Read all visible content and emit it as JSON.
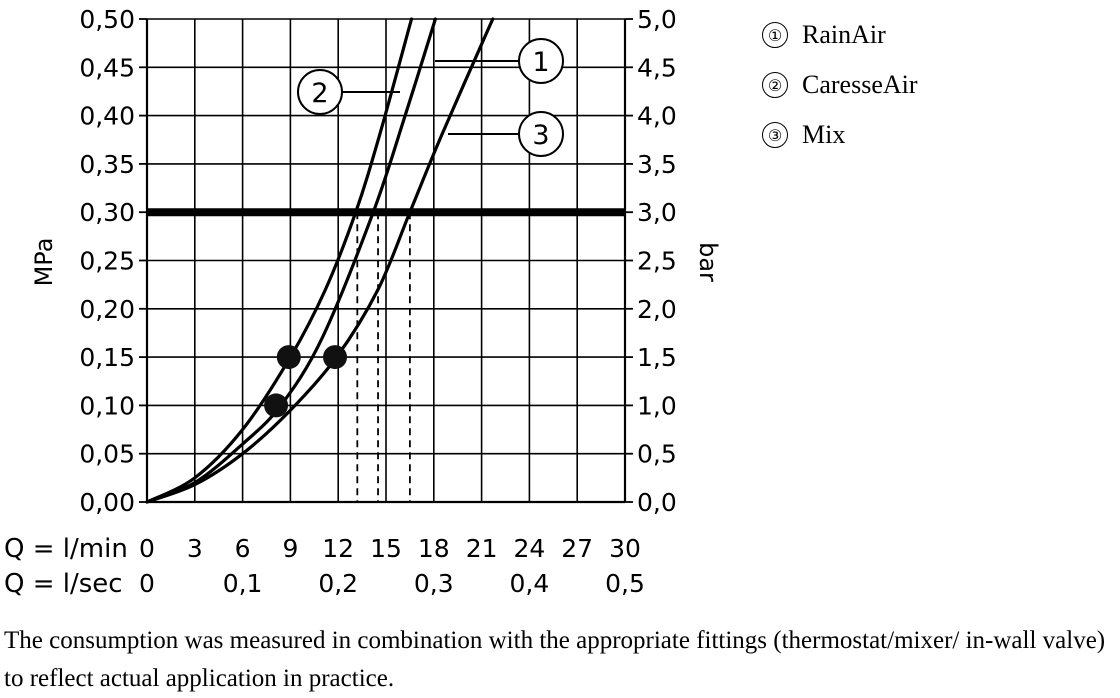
{
  "chart_data": {
    "type": "line",
    "ylabel_left": "MPa",
    "ylabel_right": "bar",
    "x_row_labels": [
      "Q = l/min",
      "Q = l/sec"
    ],
    "x_ticks_lmin": [
      "0",
      "3",
      "6",
      "9",
      "12",
      "15",
      "18",
      "21",
      "24",
      "27",
      "30"
    ],
    "x_ticks_lsec": [
      "0",
      "0,1",
      "0,2",
      "0,3",
      "0,4",
      "0,5"
    ],
    "y_ticks_left": [
      "0,00",
      "0,05",
      "0,10",
      "0,15",
      "0,20",
      "0,25",
      "0,30",
      "0,35",
      "0,40",
      "0,45",
      "0,50"
    ],
    "y_ticks_right": [
      "0,0",
      "0,5",
      "1,0",
      "1,5",
      "2,0",
      "2,5",
      "3,0",
      "3,5",
      "4,0",
      "4,5",
      "5,0"
    ],
    "xlim": [
      0,
      30
    ],
    "ylim": [
      0,
      0.5
    ],
    "grid": true,
    "reference_line": {
      "y": 0.3
    },
    "series": [
      {
        "name": "RainAir",
        "marker": "1",
        "x": [
          0,
          3,
          6,
          8.4,
          11,
          14.2,
          16.2,
          18.1
        ],
        "y": [
          0,
          0.02,
          0.06,
          0.1,
          0.17,
          0.3,
          0.4,
          0.5
        ],
        "label_at": [
          19.2,
          0.46
        ]
      },
      {
        "name": "CaresseAir",
        "marker": "2",
        "x": [
          0,
          3,
          6,
          9,
          11.2,
          13.1,
          14.6,
          16.6
        ],
        "y": [
          0,
          0.025,
          0.075,
          0.15,
          0.22,
          0.3,
          0.38,
          0.5
        ],
        "label_at": [
          15.7,
          0.425
        ]
      },
      {
        "name": "Mix",
        "marker": "3",
        "x": [
          0,
          3,
          6,
          9,
          11.9,
          14.5,
          16.5,
          18.5,
          21.7
        ],
        "y": [
          0,
          0.018,
          0.05,
          0.095,
          0.15,
          0.22,
          0.3,
          0.38,
          0.5
        ],
        "label_at": [
          18.8,
          0.38
        ]
      }
    ],
    "highlight_points": [
      {
        "x": 8.9,
        "y": 0.15
      },
      {
        "x": 11.8,
        "y": 0.15
      },
      {
        "x": 8.1,
        "y": 0.1
      }
    ],
    "dashed_drops": [
      13.2,
      14.5,
      16.5
    ]
  },
  "legend": [
    {
      "marker": "①",
      "label": "RainAir"
    },
    {
      "marker": "②",
      "label": "CaresseAir"
    },
    {
      "marker": "③",
      "label": "Mix"
    }
  ],
  "footnote": "The consumption was measured in combination with the appropriate fittings (thermostat/mixer/ in-wall valve) to reflect actual application in practice."
}
